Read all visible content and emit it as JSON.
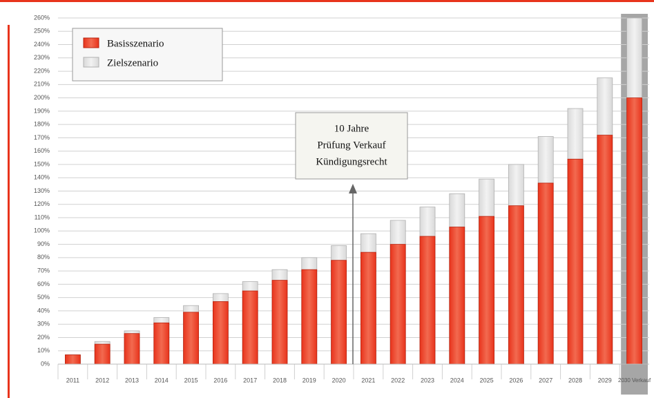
{
  "chart_data": {
    "type": "bar",
    "mode": "overlap",
    "categories": [
      "2011",
      "2012",
      "2013",
      "2014",
      "2015",
      "2016",
      "2017",
      "2018",
      "2019",
      "2020",
      "2021",
      "2022",
      "2023",
      "2024",
      "2025",
      "2026",
      "2027",
      "2028",
      "2029",
      "2030 Verkauf"
    ],
    "series": [
      {
        "name": "Zielszenario",
        "color": "#d9d9d9",
        "values": [
          7,
          17,
          25,
          35,
          44,
          53,
          62,
          71,
          80,
          89,
          98,
          108,
          118,
          128,
          139,
          150,
          171,
          192,
          215,
          260
        ]
      },
      {
        "name": "Basisszenario",
        "color": "#e8341c",
        "values": [
          7,
          15,
          23,
          31,
          39,
          47,
          55,
          63,
          71,
          78,
          84,
          90,
          96,
          103,
          111,
          119,
          136,
          154,
          172,
          200
        ]
      }
    ],
    "ylim": [
      0,
      260
    ],
    "yticks": [
      {
        "value": 0,
        "label": "0%"
      },
      {
        "value": 10,
        "label": "10%"
      },
      {
        "value": 20,
        "label": "20%"
      },
      {
        "value": 30,
        "label": "30%"
      },
      {
        "value": 40,
        "label": "40%"
      },
      {
        "value": 50,
        "label": "50%"
      },
      {
        "value": 60,
        "label": "60%"
      },
      {
        "value": 70,
        "label": "70%"
      },
      {
        "value": 80,
        "label": "80%"
      },
      {
        "value": 90,
        "label": "90%"
      },
      {
        "value": 100,
        "label": "100%"
      },
      {
        "value": 110,
        "label": "110%"
      },
      {
        "value": 120,
        "label": "120%"
      },
      {
        "value": 130,
        "label": "130%"
      },
      {
        "value": 140,
        "label": "140%"
      },
      {
        "value": 150,
        "label": "150%"
      },
      {
        "value": 160,
        "label": "160%"
      },
      {
        "value": 170,
        "label": "170%"
      },
      {
        "value": 180,
        "label": "180%"
      },
      {
        "value": 190,
        "label": "190%"
      },
      {
        "value": 200,
        "label": "200%"
      },
      {
        "value": 210,
        "label": "210%"
      },
      {
        "value": 220,
        "label": "220%"
      },
      {
        "value": 230,
        "label": "230%"
      },
      {
        "value": 240,
        "label": "240%"
      },
      {
        "value": 250,
        "label": "250%"
      },
      {
        "value": 260,
        "label": "260%"
      }
    ],
    "grid": true,
    "legend": "upper left",
    "annotation": [
      "10 Jahre",
      "Prüfung Verkauf",
      "Kündigungsrecht"
    ]
  }
}
